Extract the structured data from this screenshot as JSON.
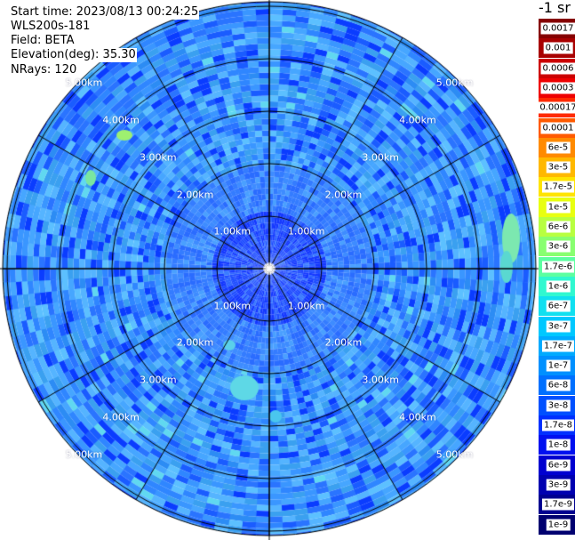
{
  "info": {
    "start_time": "Start time: 2023/08/13 00:24:25",
    "device": "WLS200s-181",
    "field": "Field: BETA",
    "elevation": "Elevation(deg): 35.30",
    "nrays": "NRays: 120"
  },
  "colorbar": {
    "unit": "-1 sr",
    "levels": [
      {
        "label": "0.0017",
        "color": "#860000"
      },
      {
        "label": "0.001",
        "color": "#a80000"
      },
      {
        "label": "0.0006",
        "color": "#cc0000"
      },
      {
        "label": "0.0003",
        "color": "#ee0000"
      },
      {
        "label": "0.00017",
        "color": "#ff2a00"
      },
      {
        "label": "0.0001",
        "color": "#ff5a00"
      },
      {
        "label": "6e-5",
        "color": "#ff8a00"
      },
      {
        "label": "3e-5",
        "color": "#ffb800"
      },
      {
        "label": "1.7e-5",
        "color": "#ffe400"
      },
      {
        "label": "1e-5",
        "color": "#e8ff10"
      },
      {
        "label": "6e-6",
        "color": "#b8ff40"
      },
      {
        "label": "3e-6",
        "color": "#88ff70"
      },
      {
        "label": "1.7e-6",
        "color": "#5cffa0"
      },
      {
        "label": "1e-6",
        "color": "#30f8d0"
      },
      {
        "label": "6e-7",
        "color": "#10e0f0"
      },
      {
        "label": "3e-7",
        "color": "#00c8ff"
      },
      {
        "label": "1.7e-7",
        "color": "#00aaff"
      },
      {
        "label": "1e-7",
        "color": "#0090ff"
      },
      {
        "label": "6e-8",
        "color": "#0070ff"
      },
      {
        "label": "3e-8",
        "color": "#0050ff"
      },
      {
        "label": "1.7e-8",
        "color": "#0030ff"
      },
      {
        "label": "1e-8",
        "color": "#0010f0"
      },
      {
        "label": "6e-9",
        "color": "#0000d0"
      },
      {
        "label": "3e-9",
        "color": "#0000b0"
      },
      {
        "label": "1.7e-9",
        "color": "#000090"
      },
      {
        "label": "1e-9",
        "color": "#000070"
      }
    ]
  },
  "range_labels": {
    "r1": "1.00km",
    "r2": "2.00km",
    "r3": "3.00km",
    "r4": "4.00km",
    "r5": "5.00km"
  },
  "plot": {
    "range_rings_km": [
      1,
      2,
      3,
      4,
      5
    ],
    "max_range_km": 5.7,
    "n_radials": 12
  }
}
